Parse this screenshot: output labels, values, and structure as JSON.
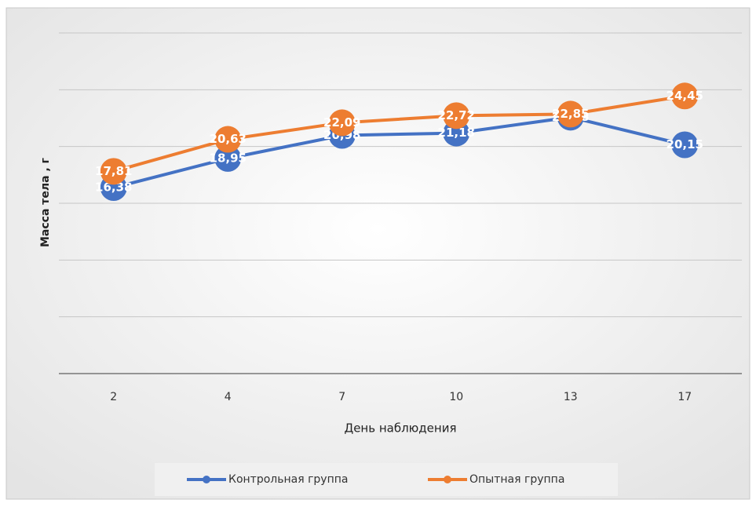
{
  "chart_data": {
    "type": "line",
    "x_label": "День наблюдения",
    "y_label": "Масса тела , г",
    "categories": [
      "2",
      "4",
      "7",
      "10",
      "13",
      "17"
    ],
    "series": [
      {
        "name": "Контрольная группа",
        "color": "#4472c4",
        "values": [
          16.38,
          18.95,
          20.98,
          21.18,
          22.58,
          20.15
        ],
        "value_labels": [
          "16,38",
          "18,95",
          "20,98",
          "21,18",
          "22,58",
          "20,15"
        ]
      },
      {
        "name": "Опытная группа",
        "color": "#ed7d31",
        "values": [
          17.81,
          20.63,
          22.09,
          22.72,
          22.85,
          24.45
        ],
        "value_labels": [
          "17,81",
          "20,63",
          "22,09",
          "22,72",
          "22,85",
          "24,45"
        ]
      }
    ],
    "ylim": [
      0,
      30
    ],
    "yticks": [
      0,
      5,
      10,
      15,
      20,
      25,
      30
    ],
    "grid": true
  }
}
